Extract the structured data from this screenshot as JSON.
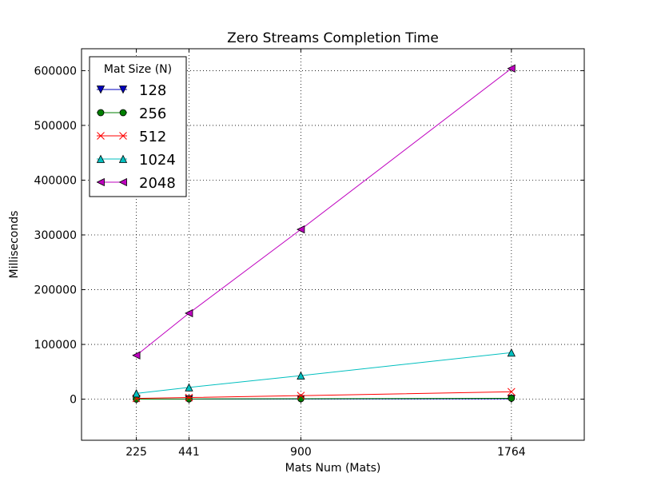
{
  "chart_data": {
    "type": "line",
    "title": "Zero Streams Completion Time",
    "xlabel": "Mats Num (Mats)",
    "ylabel": "Milliseconds",
    "x": [
      225,
      441,
      900,
      1764
    ],
    "xlim": [
      0,
      2063
    ],
    "ylim": [
      -75000,
      640000
    ],
    "xticks": [
      225,
      441,
      900,
      1764
    ],
    "yticks": [
      0,
      100000,
      200000,
      300000,
      400000,
      500000,
      600000
    ],
    "grid": true,
    "legend": {
      "title": "Mat Size (N)",
      "placement": "top-left"
    },
    "series": [
      {
        "name": "128",
        "values": [
          80,
          160,
          330,
          650
        ],
        "color": "#0000bf",
        "marker": "triangle-down"
      },
      {
        "name": "256",
        "values": [
          210,
          420,
          860,
          1700
        ],
        "color": "#007f00",
        "marker": "circle"
      },
      {
        "name": "512",
        "values": [
          1500,
          3000,
          6500,
          13500
        ],
        "color": "#ff0000",
        "marker": "x"
      },
      {
        "name": "1024",
        "values": [
          10500,
          21500,
          43000,
          85000
        ],
        "color": "#00bfbf",
        "marker": "triangle-up"
      },
      {
        "name": "2048",
        "values": [
          80000,
          157000,
          310000,
          604000
        ],
        "color": "#bf00bf",
        "marker": "triangle-left"
      }
    ]
  }
}
